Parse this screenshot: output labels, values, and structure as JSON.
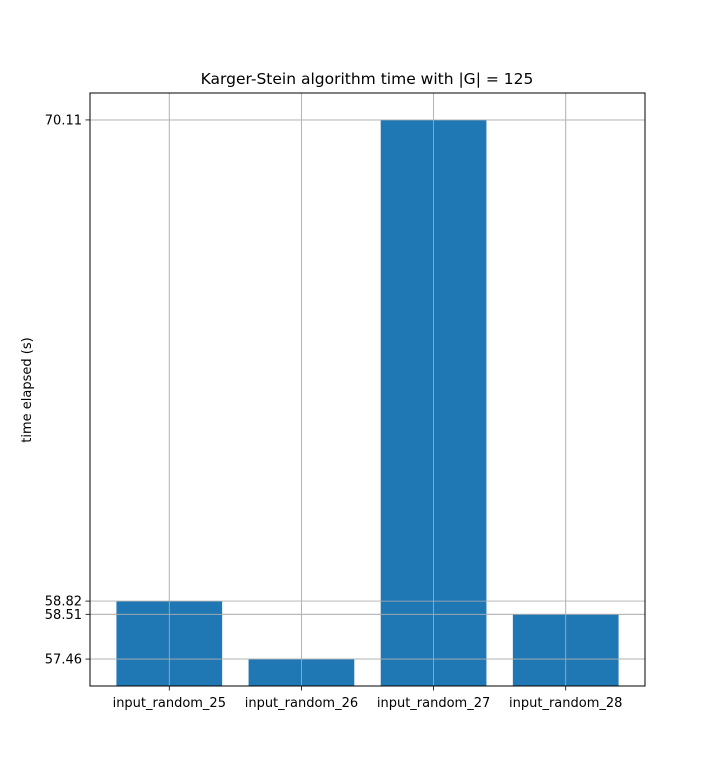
{
  "chart_data": {
    "type": "bar",
    "title": "Karger-Stein algorithm time with |G| = 125",
    "xlabel": "",
    "ylabel": "time elapsed (s)",
    "categories": [
      "input_random_25",
      "input_random_26",
      "input_random_27",
      "input_random_28"
    ],
    "values": [
      58.82,
      57.46,
      70.11,
      58.51
    ],
    "yticks": [
      57.46,
      58.51,
      58.82,
      70.11
    ],
    "ytick_labels": [
      "57.46",
      "58.51",
      "58.82",
      "70.11"
    ],
    "ylim": [
      56.828,
      70.742
    ],
    "grid": true,
    "bar_color": "#1f77b4",
    "grid_color": "#b0b0b0"
  }
}
